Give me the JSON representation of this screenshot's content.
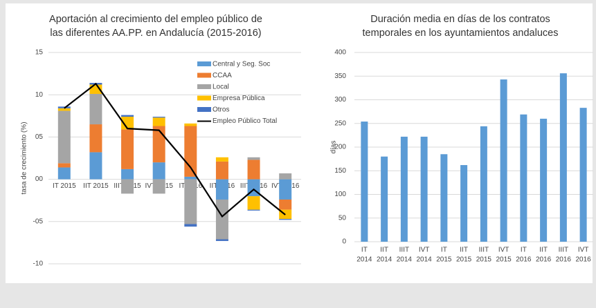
{
  "chart_data": [
    {
      "type": "bar",
      "stacked": true,
      "title": [
        "Aportación al crecimiento del empleo público de",
        "las diferentes AA.PP. en Andalucía (2015-2016)"
      ],
      "y_label": "tasa de crecimiento (%)",
      "categories": [
        "IT 2015",
        "IIT 2015",
        "IIIT 2015",
        "IVT 2015",
        "IT 2016",
        "IIT 2016",
        "IIIT 2016",
        "IVT 2016"
      ],
      "series": [
        {
          "name": "Central y Seg. Soc",
          "color": "#5b9bd5",
          "values": [
            1.4,
            3.2,
            1.2,
            2.0,
            0.3,
            -2.4,
            -2.0,
            -2.4
          ]
        },
        {
          "name": "CCAA",
          "color": "#ed7d31",
          "values": [
            0.5,
            3.3,
            4.7,
            4.3,
            6.0,
            2.1,
            2.3,
            -1.2
          ]
        },
        {
          "name": "Local",
          "color": "#a5a5a5",
          "values": [
            6.2,
            3.6,
            -1.7,
            -1.7,
            -5.3,
            -4.7,
            0.3,
            0.7
          ]
        },
        {
          "name": "Empresa Pública",
          "color": "#ffc000",
          "values": [
            0.3,
            1.1,
            1.5,
            1.0,
            0.3,
            0.5,
            -1.6,
            -1.1
          ]
        },
        {
          "name": "Otros",
          "color": "#4472c4",
          "values": [
            0.2,
            0.2,
            0.2,
            0.1,
            -0.3,
            -0.2,
            -0.1,
            -0.1
          ]
        },
        {
          "name": "Empleo Público Total",
          "color": "#000000",
          "type": "line",
          "values": [
            8.4,
            11.3,
            6.0,
            5.8,
            1.4,
            -4.4,
            -1.2,
            -4.2
          ]
        }
      ],
      "ylim": [
        -10,
        15
      ],
      "yticks": [
        -10,
        {
          "value": -5,
          "label": "-05"
        },
        {
          "value": 0,
          "label": "00"
        },
        {
          "value": 5,
          "label": "05"
        },
        10,
        15
      ],
      "grid": true,
      "legend": "upper right"
    },
    {
      "type": "bar",
      "title": [
        "Duración media en días de los contratos",
        "temporales en los ayuntamientos andaluces"
      ],
      "y_label": "días",
      "categories": [
        [
          "IT",
          "2014"
        ],
        [
          "IIT",
          "2014"
        ],
        [
          "IIIT",
          "2014"
        ],
        [
          "IVT",
          "2014"
        ],
        [
          "IT",
          "2015"
        ],
        [
          "IIT",
          "2015"
        ],
        [
          "IIIT",
          "2015"
        ],
        [
          "IVT",
          "2015"
        ],
        [
          "IT",
          "2016"
        ],
        [
          "IIT",
          "2016"
        ],
        [
          "IIIT",
          "2016"
        ],
        [
          "IVT",
          "2016"
        ]
      ],
      "values": [
        254,
        180,
        222,
        222,
        185,
        162,
        244,
        343,
        269,
        260,
        356,
        283
      ],
      "color": "#5b9bd5",
      "ylim": [
        0,
        400
      ],
      "yticks": [
        0,
        50,
        100,
        150,
        200,
        250,
        300,
        350,
        400
      ],
      "grid": true
    }
  ]
}
